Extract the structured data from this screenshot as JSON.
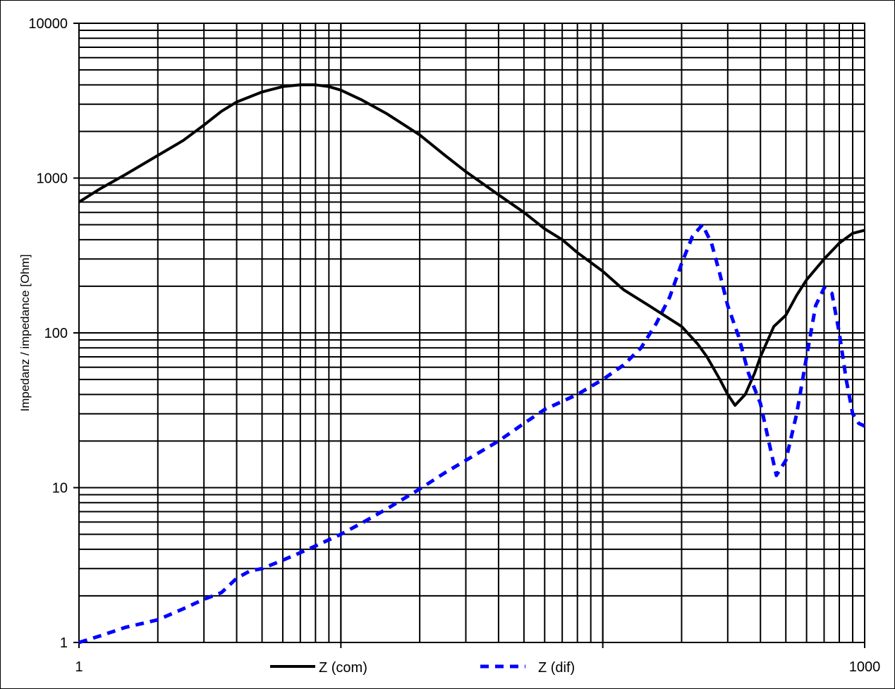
{
  "chart_data": {
    "type": "line",
    "title": "",
    "xlabel": "",
    "ylabel": "Impedanz / impedance [Ohm]",
    "x_scale": "log",
    "y_scale": "log",
    "xlim": [
      1,
      1000
    ],
    "ylim": [
      1,
      10000
    ],
    "grid": true,
    "legend_position": "bottom",
    "x_tick_labels": [
      {
        "value": 1,
        "label": "1"
      },
      {
        "value": 1000,
        "label": "1000"
      }
    ],
    "y_tick_labels": [
      {
        "value": 1,
        "label": "1"
      },
      {
        "value": 10,
        "label": "10"
      },
      {
        "value": 100,
        "label": "100"
      },
      {
        "value": 1000,
        "label": "1000"
      },
      {
        "value": 10000,
        "label": "10000"
      }
    ],
    "series": [
      {
        "name": "Z (com)",
        "color": "#000000",
        "style": "solid",
        "x": [
          1,
          1.2,
          1.5,
          2,
          2.5,
          3,
          3.5,
          4,
          5,
          6,
          7,
          8,
          9,
          10,
          12,
          15,
          20,
          25,
          30,
          40,
          50,
          60,
          70,
          80,
          100,
          120,
          150,
          200,
          230,
          250,
          280,
          300,
          320,
          350,
          380,
          400,
          450,
          500,
          550,
          600,
          700,
          800,
          900,
          1000
        ],
        "y": [
          700,
          850,
          1050,
          1400,
          1750,
          2200,
          2700,
          3100,
          3600,
          3900,
          4000,
          4000,
          3900,
          3700,
          3200,
          2600,
          1900,
          1400,
          1100,
          780,
          600,
          470,
          400,
          330,
          250,
          190,
          150,
          110,
          85,
          70,
          50,
          40,
          34,
          40,
          55,
          70,
          110,
          130,
          175,
          220,
          300,
          380,
          440,
          460
        ]
      },
      {
        "name": "Z (dif)",
        "color": "#0000ff",
        "style": "dashed",
        "x": [
          1,
          1.2,
          1.5,
          2,
          2.5,
          3,
          3.5,
          4,
          4.5,
          5,
          6,
          7,
          8,
          10,
          12,
          15,
          20,
          25,
          30,
          40,
          50,
          60,
          80,
          100,
          120,
          140,
          160,
          180,
          200,
          220,
          240,
          260,
          280,
          300,
          330,
          360,
          400,
          430,
          460,
          500,
          550,
          600,
          650,
          700,
          750,
          800,
          850,
          900,
          950,
          1000
        ],
        "y": [
          1.0,
          1.1,
          1.25,
          1.4,
          1.65,
          1.9,
          2.1,
          2.6,
          2.9,
          3.0,
          3.4,
          3.8,
          4.2,
          5.0,
          5.9,
          7.3,
          9.8,
          12.5,
          15,
          20,
          26,
          32,
          40,
          50,
          62,
          80,
          115,
          170,
          280,
          420,
          500,
          380,
          240,
          150,
          95,
          55,
          35,
          20,
          12,
          15,
          30,
          70,
          150,
          195,
          180,
          100,
          50,
          30,
          26,
          25
        ]
      }
    ]
  }
}
